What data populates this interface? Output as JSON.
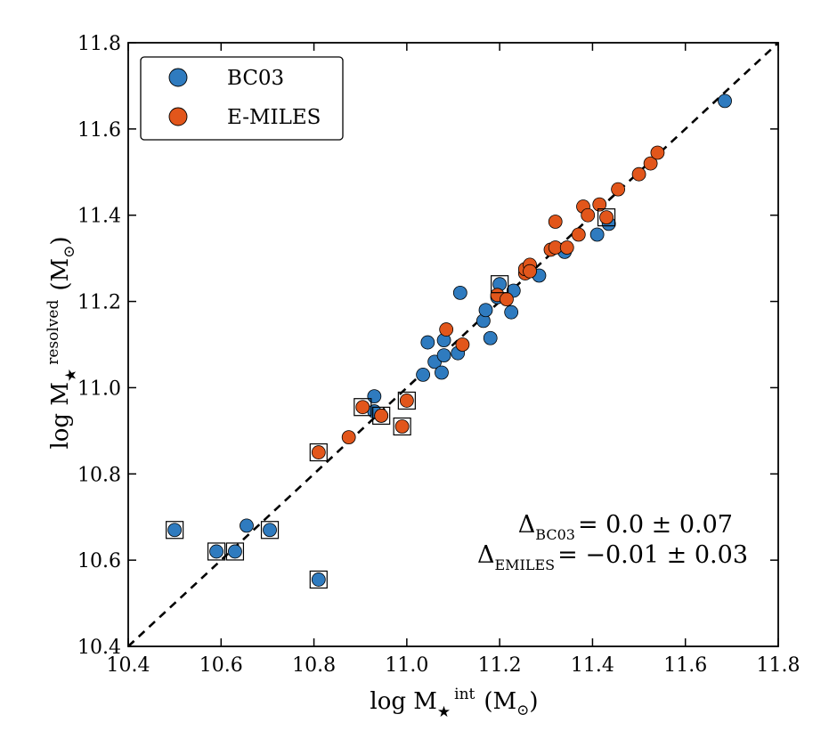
{
  "chart_data": {
    "type": "scatter",
    "xlabel": "log M",
    "xlabel_sup": "int",
    "ylabel": "log M",
    "ylabel_sup": "resolved",
    "units_prefix": "(M",
    "units_suffix": ")",
    "star_symbol": "★",
    "sun_symbol": "⊙",
    "xlim": [
      10.4,
      11.8
    ],
    "ylim": [
      10.4,
      11.8
    ],
    "xticks": [
      "10.4",
      "10.6",
      "10.8",
      "11.0",
      "11.2",
      "11.4",
      "11.6",
      "11.8"
    ],
    "yticks": [
      "10.4",
      "10.6",
      "10.8",
      "11.0",
      "11.2",
      "11.4",
      "11.6",
      "11.8"
    ],
    "one_to_one_line": true,
    "series": [
      {
        "name": "BC03",
        "color": "#2f7bbf",
        "points": [
          [
            10.5,
            10.67
          ],
          [
            10.59,
            10.62
          ],
          [
            10.63,
            10.62
          ],
          [
            10.655,
            10.68
          ],
          [
            10.705,
            10.67
          ],
          [
            10.81,
            10.555
          ],
          [
            10.93,
            10.98
          ],
          [
            10.93,
            10.945
          ],
          [
            10.945,
            10.935
          ],
          [
            11.035,
            11.03
          ],
          [
            11.045,
            11.105
          ],
          [
            11.06,
            11.06
          ],
          [
            11.075,
            11.035
          ],
          [
            11.08,
            11.075
          ],
          [
            11.08,
            11.11
          ],
          [
            11.11,
            11.08
          ],
          [
            11.115,
            11.22
          ],
          [
            11.165,
            11.155
          ],
          [
            11.17,
            11.18
          ],
          [
            11.18,
            11.115
          ],
          [
            11.195,
            11.21
          ],
          [
            11.2,
            11.24
          ],
          [
            11.225,
            11.175
          ],
          [
            11.23,
            11.225
          ],
          [
            11.285,
            11.26
          ],
          [
            11.34,
            11.315
          ],
          [
            11.41,
            11.355
          ],
          [
            11.435,
            11.38
          ],
          [
            11.685,
            11.665
          ]
        ]
      },
      {
        "name": "E-MILES",
        "color": "#e2561b",
        "points": [
          [
            10.81,
            10.85
          ],
          [
            10.875,
            10.885
          ],
          [
            10.905,
            10.955
          ],
          [
            10.945,
            10.935
          ],
          [
            10.99,
            10.91
          ],
          [
            11.0,
            10.97
          ],
          [
            11.085,
            11.135
          ],
          [
            11.12,
            11.1
          ],
          [
            11.195,
            11.215
          ],
          [
            11.215,
            11.205
          ],
          [
            11.255,
            11.265
          ],
          [
            11.255,
            11.275
          ],
          [
            11.265,
            11.285
          ],
          [
            11.265,
            11.27
          ],
          [
            11.31,
            11.32
          ],
          [
            11.32,
            11.385
          ],
          [
            11.32,
            11.325
          ],
          [
            11.345,
            11.325
          ],
          [
            11.37,
            11.355
          ],
          [
            11.38,
            11.42
          ],
          [
            11.39,
            11.4
          ],
          [
            11.415,
            11.425
          ],
          [
            11.43,
            11.395
          ],
          [
            11.455,
            11.46
          ],
          [
            11.5,
            11.495
          ],
          [
            11.525,
            11.52
          ],
          [
            11.54,
            11.545
          ]
        ]
      }
    ],
    "boxed_points": [
      [
        10.5,
        10.67
      ],
      [
        10.59,
        10.62
      ],
      [
        10.63,
        10.62
      ],
      [
        10.705,
        10.67
      ],
      [
        10.81,
        10.555
      ],
      [
        10.81,
        10.85
      ],
      [
        10.905,
        10.955
      ],
      [
        10.945,
        10.935
      ],
      [
        10.99,
        10.91
      ],
      [
        11.0,
        10.97
      ],
      [
        11.2,
        11.24
      ],
      [
        11.43,
        11.395
      ]
    ],
    "legend_position": "top-left",
    "annotations": [
      {
        "symbol": "Δ",
        "sub": "BC03",
        "text": "= 0.0 ± 0.07"
      },
      {
        "symbol": "Δ",
        "sub": "EMILES",
        "text": "= −0.01 ± 0.03"
      }
    ]
  }
}
